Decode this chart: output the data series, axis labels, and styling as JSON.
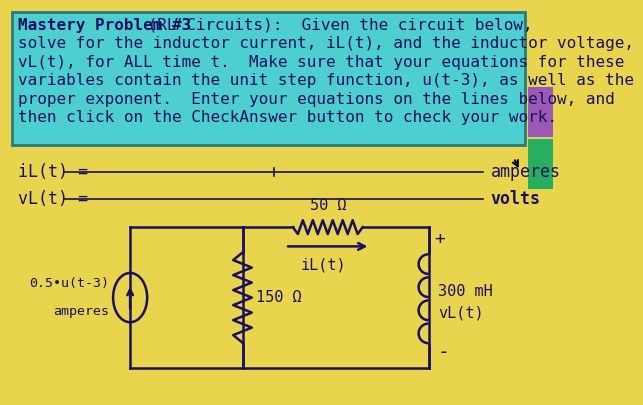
{
  "bg_color": "#E8D44D",
  "header_bg": "#4DCFCF",
  "header_border": "#2A7A7A",
  "header_text_color": "#1A1060",
  "line_color": "#1A1060",
  "text_color": "#1A1060",
  "resistor1_label": "50 Ω",
  "iL_arrow_label": "iL(t)",
  "source_label": "0.5•u(t-3)",
  "source_sublabel": "amperes",
  "resistor2_label": "150 Ω",
  "inductor_label": "300 mH",
  "vL_circuit_label": "vL(t)",
  "plus_label": "+",
  "minus_label": "-",
  "iL_label": "iL(t) =",
  "vL_label": "vL(t) =",
  "amperes_label": "amperes",
  "volts_label": "volts",
  "header_line1": "Mastery Problem #3 (RL Circuits):  Given the circuit below,",
  "header_bold": "Mastery Problem #3",
  "header_rest1": " (RL Circuits):  Given the circuit below,",
  "header_line2": "solve for the inductor current, iL(t), and the inductor voltage,",
  "header_line3": "vL(t), for ALL time t.  Make sure that your equations for these",
  "header_line4": "variables contain the unit step function, u(t-3), as well as the",
  "header_line5": "proper exponent.  Enter your equations on the lines below, and",
  "header_line6": "then click on the CheckAnswer button to check your work.",
  "cursor_color": "#000000"
}
